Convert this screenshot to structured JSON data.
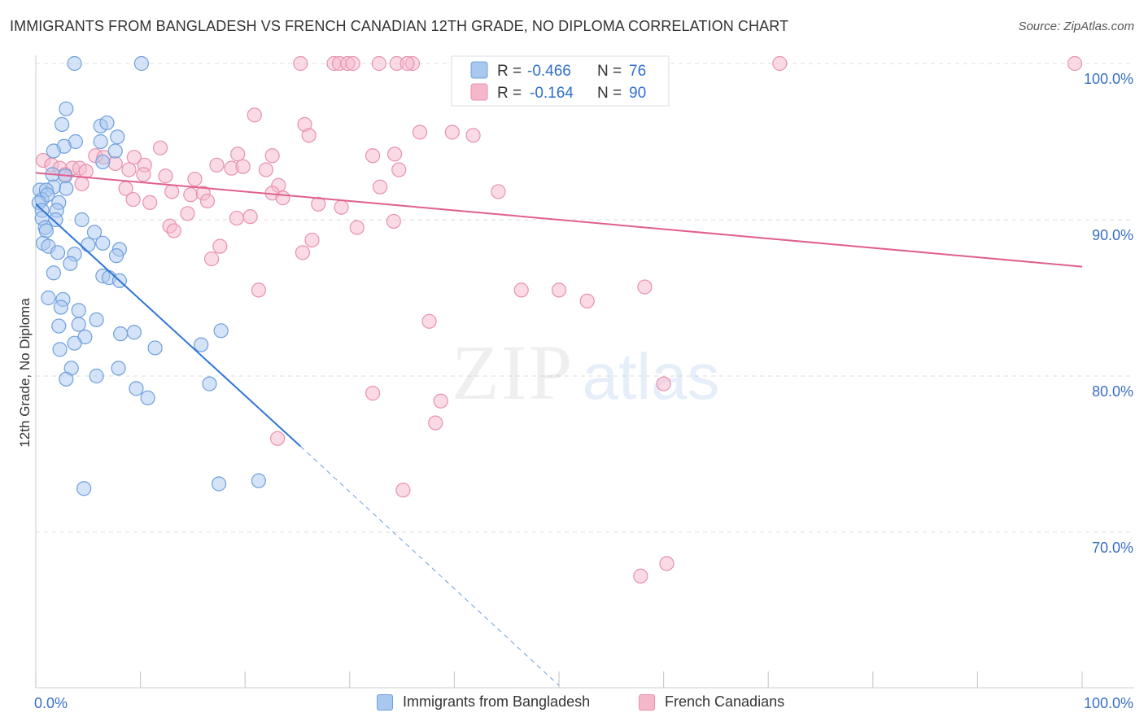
{
  "header": {
    "title": "IMMIGRANTS FROM BANGLADESH VS FRENCH CANADIAN 12TH GRADE, NO DIPLOMA CORRELATION CHART",
    "source": "Source: ZipAtlas.com"
  },
  "watermark": {
    "zip": "ZIP",
    "atlas": "atlas"
  },
  "legend_top": [
    {
      "r_label": "R =",
      "r_value": "-0.466",
      "n_label": "N =",
      "n_value": "76"
    },
    {
      "r_label": "R =",
      "r_value": "-0.164",
      "n_label": "N =",
      "n_value": "90"
    }
  ],
  "legend_bottom": [
    {
      "label": "Immigrants from Bangladesh"
    },
    {
      "label": "French Canadians"
    }
  ],
  "colors": {
    "blue_fill": "#a9c8f0",
    "blue_stroke": "#6fa0dd",
    "blue_line": "#2f75d6",
    "pink_fill": "#f5b8cb",
    "pink_stroke": "#e891ad",
    "pink_line": "#e0608c",
    "tick_label": "#3a6fc4",
    "grid": "#dddddd"
  },
  "chart_data": {
    "type": "scatter",
    "title": "IMMIGRANTS FROM BANGLADESH VS FRENCH CANADIAN 12TH GRADE, NO DIPLOMA CORRELATION CHART",
    "xlabel": "",
    "ylabel": "12th Grade, No Diploma",
    "xlim": [
      0,
      100
    ],
    "ylim": [
      61.0,
      101.5
    ],
    "x_tick_labels": [
      "0.0%",
      "100.0%"
    ],
    "y_ticks": [
      70,
      80,
      90,
      100
    ],
    "y_tick_labels": [
      "70.0%",
      "80.0%",
      "90.0%",
      "100.0%"
    ],
    "grid": true,
    "legend_position": "top-center",
    "series": [
      {
        "name": "Immigrants from Bangladesh",
        "color": "#a9c8f0",
        "R": -0.466,
        "N": 76,
        "trend": {
          "x0": 0.0,
          "y0": 91.0,
          "x1": 25.3,
          "y1": 75.5,
          "dashed_to": [
            50.0,
            60.2
          ]
        },
        "points": [
          [
            3.7,
            100.0
          ],
          [
            10.1,
            100.0
          ],
          [
            2.9,
            97.1
          ],
          [
            2.5,
            96.1
          ],
          [
            6.2,
            96.0
          ],
          [
            6.8,
            96.2
          ],
          [
            7.8,
            95.3
          ],
          [
            3.8,
            95.0
          ],
          [
            6.2,
            95.0
          ],
          [
            2.7,
            94.7
          ],
          [
            1.7,
            94.4
          ],
          [
            7.6,
            94.4
          ],
          [
            6.4,
            93.7
          ],
          [
            1.6,
            92.9
          ],
          [
            2.8,
            92.8
          ],
          [
            2.9,
            92.0
          ],
          [
            1.7,
            92.1
          ],
          [
            0.4,
            91.9
          ],
          [
            1.0,
            91.9
          ],
          [
            0.6,
            91.3
          ],
          [
            1.1,
            91.6
          ],
          [
            2.2,
            91.1
          ],
          [
            0.3,
            91.1
          ],
          [
            0.6,
            90.6
          ],
          [
            2.0,
            90.6
          ],
          [
            0.6,
            90.1
          ],
          [
            4.4,
            90.0
          ],
          [
            1.9,
            90.0
          ],
          [
            0.9,
            89.5
          ],
          [
            1.0,
            89.3
          ],
          [
            5.6,
            89.2
          ],
          [
            0.7,
            88.5
          ],
          [
            1.2,
            88.3
          ],
          [
            5.0,
            88.4
          ],
          [
            6.4,
            88.5
          ],
          [
            8.0,
            88.1
          ],
          [
            2.1,
            87.9
          ],
          [
            3.7,
            87.8
          ],
          [
            7.7,
            87.7
          ],
          [
            3.3,
            87.2
          ],
          [
            1.7,
            86.6
          ],
          [
            6.4,
            86.4
          ],
          [
            7.0,
            86.3
          ],
          [
            8.0,
            86.1
          ],
          [
            1.2,
            85.0
          ],
          [
            2.6,
            84.9
          ],
          [
            2.4,
            84.4
          ],
          [
            4.1,
            84.2
          ],
          [
            5.8,
            83.6
          ],
          [
            4.1,
            83.3
          ],
          [
            2.2,
            83.2
          ],
          [
            8.1,
            82.7
          ],
          [
            9.4,
            82.8
          ],
          [
            4.7,
            82.5
          ],
          [
            17.7,
            82.9
          ],
          [
            3.7,
            82.1
          ],
          [
            15.8,
            82.0
          ],
          [
            11.4,
            81.8
          ],
          [
            2.3,
            81.7
          ],
          [
            7.9,
            80.5
          ],
          [
            3.4,
            80.5
          ],
          [
            5.8,
            80.0
          ],
          [
            2.9,
            79.8
          ],
          [
            16.6,
            79.5
          ],
          [
            9.6,
            79.2
          ],
          [
            10.7,
            78.6
          ],
          [
            4.6,
            72.8
          ],
          [
            17.5,
            73.1
          ],
          [
            21.3,
            73.3
          ]
        ]
      },
      {
        "name": "French Canadians",
        "color": "#f5b8cb",
        "R": -0.164,
        "N": 90,
        "trend": {
          "x0": 0.0,
          "y0": 93.0,
          "x1": 100.0,
          "y1": 87.0
        },
        "points": [
          [
            25.3,
            100.0
          ],
          [
            28.5,
            100.0
          ],
          [
            29.0,
            100.0
          ],
          [
            29.8,
            100.0
          ],
          [
            30.3,
            100.0
          ],
          [
            32.8,
            100.0
          ],
          [
            34.5,
            100.0
          ],
          [
            36.0,
            100.0
          ],
          [
            35.5,
            100.0
          ],
          [
            48.2,
            100.0
          ],
          [
            71.1,
            100.0
          ],
          [
            99.3,
            100.0
          ],
          [
            20.9,
            96.7
          ],
          [
            25.7,
            96.1
          ],
          [
            26.1,
            95.4
          ],
          [
            36.7,
            95.6
          ],
          [
            39.8,
            95.6
          ],
          [
            41.8,
            95.4
          ],
          [
            11.9,
            94.6
          ],
          [
            19.3,
            94.2
          ],
          [
            22.6,
            94.1
          ],
          [
            32.2,
            94.1
          ],
          [
            34.3,
            94.2
          ],
          [
            0.7,
            93.8
          ],
          [
            5.7,
            94.1
          ],
          [
            6.5,
            94.0
          ],
          [
            9.4,
            94.0
          ],
          [
            7.6,
            93.6
          ],
          [
            1.5,
            93.5
          ],
          [
            2.3,
            93.3
          ],
          [
            3.5,
            93.3
          ],
          [
            4.2,
            93.3
          ],
          [
            8.9,
            93.2
          ],
          [
            10.4,
            93.5
          ],
          [
            17.3,
            93.5
          ],
          [
            18.7,
            93.3
          ],
          [
            19.8,
            93.4
          ],
          [
            22.0,
            93.2
          ],
          [
            34.7,
            93.2
          ],
          [
            2.8,
            92.9
          ],
          [
            4.8,
            93.1
          ],
          [
            10.3,
            92.9
          ],
          [
            12.4,
            92.8
          ],
          [
            15.2,
            92.6
          ],
          [
            23.2,
            92.2
          ],
          [
            4.4,
            92.3
          ],
          [
            8.6,
            92.0
          ],
          [
            13.0,
            91.8
          ],
          [
            14.8,
            91.6
          ],
          [
            16.0,
            91.7
          ],
          [
            22.6,
            91.7
          ],
          [
            32.9,
            92.1
          ],
          [
            44.2,
            91.8
          ],
          [
            9.3,
            91.3
          ],
          [
            10.9,
            91.1
          ],
          [
            16.4,
            91.2
          ],
          [
            23.6,
            91.4
          ],
          [
            27.0,
            91.0
          ],
          [
            29.2,
            90.8
          ],
          [
            14.5,
            90.4
          ],
          [
            19.2,
            90.1
          ],
          [
            20.5,
            90.2
          ],
          [
            34.2,
            89.9
          ],
          [
            12.8,
            89.6
          ],
          [
            13.2,
            89.3
          ],
          [
            30.7,
            89.5
          ],
          [
            26.4,
            88.7
          ],
          [
            17.6,
            88.3
          ],
          [
            25.5,
            87.9
          ],
          [
            16.8,
            87.5
          ],
          [
            21.3,
            85.5
          ],
          [
            46.4,
            85.5
          ],
          [
            50.0,
            85.5
          ],
          [
            58.2,
            85.7
          ],
          [
            52.7,
            84.8
          ],
          [
            37.6,
            83.5
          ],
          [
            60.0,
            79.5
          ],
          [
            32.2,
            78.9
          ],
          [
            38.7,
            78.4
          ],
          [
            38.2,
            77.0
          ],
          [
            23.1,
            76.0
          ],
          [
            35.1,
            72.7
          ],
          [
            57.8,
            67.2
          ],
          [
            60.3,
            68.0
          ]
        ]
      }
    ]
  }
}
